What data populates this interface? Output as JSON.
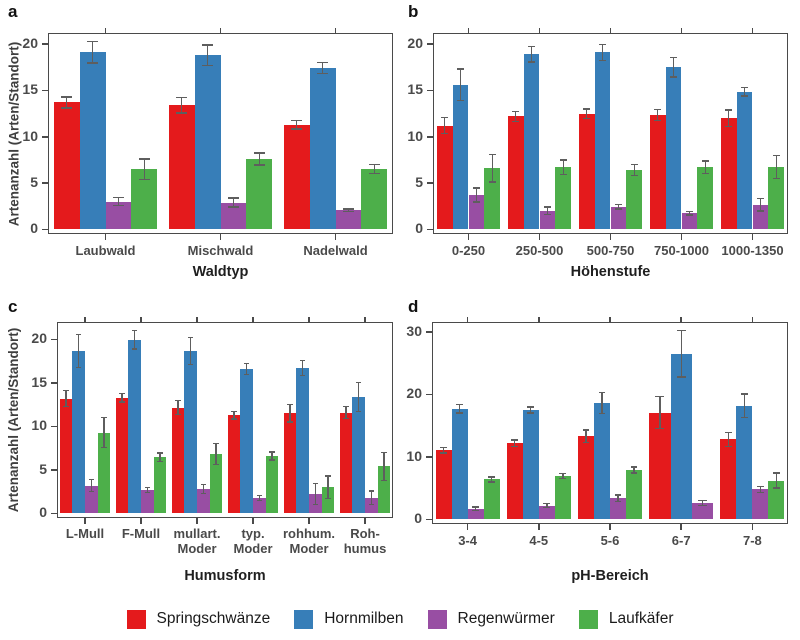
{
  "figure_title": "",
  "legend": [
    {
      "id": "springschwaenze",
      "label": "Springschwänze",
      "color": "#e41a1c"
    },
    {
      "id": "hornmilben",
      "label": "Hornmilben",
      "color": "#377eb8"
    },
    {
      "id": "regenwuermer",
      "label": "Regenwürmer",
      "color": "#984ea3"
    },
    {
      "id": "laufkaefer",
      "label": "Laufkäfer",
      "color": "#4daf4a"
    }
  ],
  "errorbar_color": "#5e5e5e",
  "axis_color": "#4a4a4a",
  "chart_data": [
    {
      "panel_label": "a",
      "type": "bar",
      "xlabel": "Waldtyp",
      "ylabel": "Artenanzahl (Arten/Standort)",
      "ylim": [
        0,
        21.2
      ],
      "yticks": [
        0,
        5,
        10,
        15,
        20
      ],
      "grid": false,
      "categories": [
        "Laubwald",
        "Mischwald",
        "Nadelwald"
      ],
      "series": [
        {
          "name": "Springschwänze",
          "values": [
            13.7,
            13.4,
            11.3
          ],
          "errors": [
            0.6,
            0.85,
            0.45
          ]
        },
        {
          "name": "Hornmilben",
          "values": [
            19.1,
            18.8,
            17.4
          ],
          "errors": [
            1.15,
            1.1,
            0.6
          ]
        },
        {
          "name": "Regenwürmer",
          "values": [
            3.0,
            2.9,
            2.05
          ],
          "errors": [
            0.45,
            0.5,
            0.15
          ]
        },
        {
          "name": "Laufkäfer",
          "values": [
            6.5,
            7.6,
            6.5
          ],
          "errors": [
            1.1,
            0.65,
            0.5
          ]
        }
      ]
    },
    {
      "panel_label": "b",
      "type": "bar",
      "xlabel": "Höhenstufe",
      "ylabel": "",
      "ylim": [
        0,
        21.2
      ],
      "yticks": [
        0,
        5,
        10,
        15,
        20
      ],
      "grid": false,
      "categories": [
        "0-250",
        "250-500",
        "500-750",
        "750-1000",
        "1000-1350"
      ],
      "series": [
        {
          "name": "Springschwänze",
          "values": [
            11.2,
            12.2,
            12.5,
            12.35,
            12.0
          ],
          "errors": [
            0.85,
            0.55,
            0.5,
            0.6,
            0.9
          ]
        },
        {
          "name": "Hornmilben",
          "values": [
            15.6,
            18.9,
            19.1,
            17.5,
            14.85
          ],
          "errors": [
            1.7,
            0.85,
            0.85,
            1.05,
            0.45
          ]
        },
        {
          "name": "Regenwürmer",
          "values": [
            3.7,
            2.0,
            2.45,
            1.75,
            2.65
          ],
          "errors": [
            0.75,
            0.4,
            0.25,
            0.2,
            0.65
          ]
        },
        {
          "name": "Laufkäfer",
          "values": [
            6.6,
            6.7,
            6.4,
            6.7,
            6.75
          ],
          "errors": [
            1.5,
            0.8,
            0.6,
            0.7,
            1.25
          ]
        }
      ]
    },
    {
      "panel_label": "c",
      "type": "bar",
      "xlabel": "Humusform",
      "ylabel": "Artenanzahl (Arten/Standort)",
      "ylim": [
        0,
        22.0
      ],
      "yticks": [
        0,
        5,
        10,
        15,
        20
      ],
      "grid": false,
      "categories": [
        "L-Mull",
        "F-Mull",
        "mullart.\nModer",
        "typ.\nModer",
        "rohhum.\nModer",
        "Roh-\nhumus"
      ],
      "series": [
        {
          "name": "Springschwänze",
          "values": [
            13.2,
            13.3,
            12.15,
            11.3,
            11.5,
            11.6
          ],
          "errors": [
            0.9,
            0.5,
            0.8,
            0.45,
            1.0,
            0.7
          ]
        },
        {
          "name": "Hornmilben",
          "values": [
            18.65,
            19.95,
            18.7,
            16.6,
            16.7,
            13.4
          ],
          "errors": [
            1.9,
            1.05,
            1.55,
            0.6,
            0.85,
            1.65
          ]
        },
        {
          "name": "Regenwürmer",
          "values": [
            3.2,
            2.7,
            2.8,
            1.8,
            2.25,
            1.8
          ],
          "errors": [
            0.7,
            0.3,
            0.5,
            0.3,
            1.2,
            0.8
          ]
        },
        {
          "name": "Laufkäfer",
          "values": [
            9.3,
            6.45,
            6.85,
            6.6,
            3.0,
            5.4
          ],
          "errors": [
            1.75,
            0.5,
            1.2,
            0.45,
            1.3,
            1.6
          ]
        }
      ]
    },
    {
      "panel_label": "d",
      "type": "bar",
      "xlabel": "pH-Bereich",
      "ylabel": "",
      "ylim": [
        0,
        31.6
      ],
      "yticks": [
        0,
        10,
        20,
        30
      ],
      "grid": false,
      "categories": [
        "3-4",
        "4-5",
        "5-6",
        "6-7",
        "7-8"
      ],
      "series": [
        {
          "name": "Springschwänze",
          "values": [
            11.1,
            12.2,
            13.3,
            17.1,
            12.8
          ],
          "errors": [
            0.45,
            0.5,
            1.0,
            2.6,
            1.1
          ]
        },
        {
          "name": "Hornmilben",
          "values": [
            17.7,
            17.5,
            18.6,
            26.5,
            18.2
          ],
          "errors": [
            0.7,
            0.5,
            1.7,
            3.7,
            1.9
          ]
        },
        {
          "name": "Regenwürmer",
          "values": [
            1.7,
            2.2,
            3.4,
            2.6,
            4.8
          ],
          "errors": [
            0.3,
            0.3,
            0.5,
            0.4,
            0.5
          ]
        },
        {
          "name": "Laufkäfer",
          "values": [
            6.4,
            6.9,
            7.9,
            null,
            6.2
          ],
          "errors": [
            0.4,
            0.4,
            0.5,
            null,
            1.2
          ]
        }
      ]
    }
  ]
}
